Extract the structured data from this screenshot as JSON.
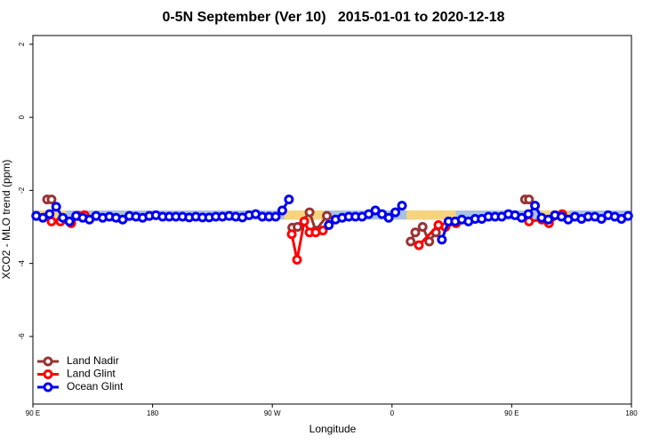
{
  "chart_data": {
    "type": "line",
    "title": "0-5N September (Ver 10)   2015-01-01 to 2020-12-18",
    "xlabel": "Longitude",
    "ylabel": "XCO2 - MLO trend (ppm)",
    "xlim": [
      90,
      540
    ],
    "ylim": [
      -7.85,
      2.24
    ],
    "xticks": [
      {
        "value": 90,
        "label": "90 E"
      },
      {
        "value": 180,
        "label": "180"
      },
      {
        "value": 270,
        "label": "90 W"
      },
      {
        "value": 360,
        "label": "0"
      },
      {
        "value": 450,
        "label": "90 E"
      },
      {
        "value": 540,
        "label": "180"
      }
    ],
    "yticks": [
      2,
      0,
      -2,
      -4,
      -6
    ],
    "legend": "bottom-left",
    "regions": [
      {
        "x": [
          90,
          540
        ],
        "y": [
          -2.8,
          -2.55
        ],
        "color": "#a9c1e3"
      },
      {
        "x": [
          95,
          115
        ],
        "y": [
          -2.8,
          -2.55
        ],
        "color": "#f6d47e"
      },
      {
        "x": [
          279,
          309
        ],
        "y": [
          -2.8,
          -2.55
        ],
        "color": "#f6d47e"
      },
      {
        "x": [
          371,
          408
        ],
        "y": [
          -2.8,
          -2.55
        ],
        "color": "#f6d47e"
      },
      {
        "x": [
          472,
          493
        ],
        "y": [
          -2.8,
          -2.55
        ],
        "color": "#f6d47e"
      }
    ],
    "series": [
      {
        "name": "Land Nadir",
        "color": "#993333",
        "x": [
          100.7,
          104,
          200,
          285,
          289,
          298,
          302.6,
          311,
          340,
          374,
          377.5,
          383,
          388,
          393,
          430,
          460,
          463
        ],
        "values": [
          -2.25,
          -2.25,
          null,
          -3.02,
          -3.0,
          -2.6,
          -3.1,
          -2.7,
          null,
          -3.4,
          -3.15,
          -3.0,
          -3.4,
          -3.15,
          null,
          -2.25,
          -2.25
        ]
      },
      {
        "name": "Land Glint",
        "color": "#ff0000",
        "x": [
          104,
          110.7,
          118.8,
          124,
          128.8,
          200,
          284.6,
          288.6,
          294,
          298,
          302.6,
          308,
          340,
          380.2,
          394.9,
          400.2,
          408.2,
          430,
          463,
          472.7,
          478,
          488
        ],
        "values": [
          -2.85,
          -2.85,
          -2.9,
          -2.7,
          -2.68,
          null,
          -3.2,
          -3.9,
          -2.85,
          -3.15,
          -3.15,
          -3.1,
          null,
          -3.5,
          -2.95,
          -3.0,
          -2.9,
          null,
          -2.85,
          -2.8,
          -2.9,
          -2.65
        ]
      },
      {
        "name": "Ocean Glint",
        "color": "#0000ee",
        "x": [
          92.5,
          97.5,
          102.5,
          107.5,
          112.5,
          117.5,
          122.5,
          127.5,
          132.5,
          137.5,
          142.5,
          147.5,
          152.5,
          157.5,
          162.5,
          167.5,
          172.5,
          177.5,
          182.5,
          187.5,
          192.5,
          197.5,
          202.5,
          207.5,
          212.5,
          217.5,
          222.5,
          227.5,
          232.5,
          237.5,
          242.5,
          247.5,
          252.5,
          257.5,
          262.5,
          267.5,
          272.5,
          277.5,
          282.5,
          297.5,
          312.5,
          317.5,
          322.5,
          327.5,
          332.5,
          337.5,
          342.5,
          347.5,
          352.5,
          357.5,
          362.5,
          367.5,
          382.5,
          397.5,
          402.5,
          407.5,
          412.5,
          417.5,
          422.5,
          427.5,
          432.5,
          437.5,
          442.5,
          447.5,
          452.5,
          457.5,
          462.5,
          467.5,
          472.5,
          477.5,
          482.5,
          487.5,
          492.5,
          497.5,
          502.5,
          507.5,
          512.5,
          517.5,
          522.5,
          527.5,
          532.5,
          537.5
        ],
        "values": [
          -2.7,
          -2.75,
          -2.65,
          -2.45,
          -2.75,
          -2.85,
          -2.7,
          -2.75,
          -2.8,
          -2.7,
          -2.75,
          -2.72,
          -2.75,
          -2.8,
          -2.7,
          -2.72,
          -2.75,
          -2.7,
          -2.68,
          -2.72,
          -2.72,
          -2.72,
          -2.72,
          -2.74,
          -2.72,
          -2.74,
          -2.74,
          -2.72,
          -2.72,
          -2.7,
          -2.72,
          -2.74,
          -2.68,
          -2.65,
          -2.72,
          -2.72,
          -2.72,
          -2.55,
          -2.25,
          null,
          -2.95,
          -2.8,
          -2.75,
          -2.72,
          -2.72,
          -2.72,
          -2.65,
          -2.55,
          -2.65,
          -2.75,
          -2.6,
          -2.42,
          null,
          -3.35,
          -2.85,
          -2.85,
          -2.8,
          -2.85,
          -2.78,
          -2.78,
          -2.72,
          -2.72,
          -2.72,
          -2.65,
          -2.68,
          -2.75,
          -2.65,
          -2.42,
          -2.75,
          -2.8,
          -2.68,
          -2.72,
          -2.8,
          -2.72,
          -2.78,
          -2.72,
          -2.72,
          -2.78,
          -2.68,
          -2.72,
          -2.78,
          -2.7
        ]
      }
    ]
  }
}
